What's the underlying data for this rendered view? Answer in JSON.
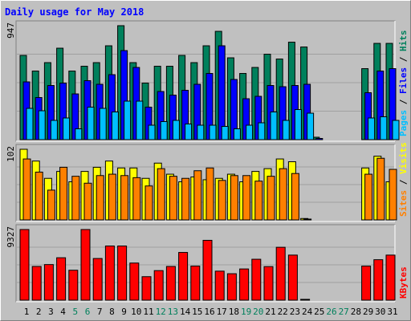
{
  "chart_data": [
    {
      "type": "bar",
      "title": "Daily usage for May 2018",
      "panel": "pages-files-hits",
      "y_max_label": "947",
      "ylim": [
        0,
        947
      ],
      "legend": [
        "Pages",
        "Files",
        "Hits"
      ],
      "legend_separator": "/",
      "categories": [
        "1",
        "2",
        "3",
        "4",
        "5",
        "6",
        "7",
        "8",
        "9",
        "10",
        "11",
        "12",
        "13",
        "14",
        "15",
        "16",
        "17",
        "18",
        "19",
        "20",
        "21",
        "22",
        "23",
        "24",
        "25",
        "26",
        "27",
        "28",
        "29",
        "30",
        "31"
      ],
      "series": [
        {
          "name": "Hits",
          "color": "#00805c",
          "values": [
            700,
            570,
            640,
            760,
            570,
            610,
            640,
            780,
            947,
            640,
            470,
            610,
            610,
            700,
            640,
            780,
            900,
            680,
            550,
            600,
            710,
            670,
            810,
            770,
            20,
            0,
            0,
            0,
            590,
            800,
            800
          ]
        },
        {
          "name": "Files",
          "color": "#0000ff",
          "values": [
            480,
            350,
            450,
            470,
            380,
            490,
            460,
            540,
            740,
            600,
            270,
            400,
            370,
            410,
            460,
            550,
            780,
            500,
            340,
            360,
            450,
            440,
            450,
            460,
            10,
            0,
            0,
            0,
            390,
            570,
            590
          ]
        },
        {
          "name": "Pages",
          "color": "#00bfff",
          "values": [
            260,
            240,
            160,
            180,
            90,
            270,
            260,
            230,
            320,
            320,
            120,
            150,
            160,
            130,
            120,
            120,
            110,
            90,
            120,
            140,
            230,
            160,
            250,
            220,
            0,
            0,
            0,
            0,
            180,
            190,
            160
          ]
        }
      ]
    },
    {
      "type": "bar",
      "panel": "sites-visits",
      "y_max_label": "102",
      "ylim": [
        0,
        102
      ],
      "legend": [
        "Sites",
        "Visits"
      ],
      "legend_separator": "/",
      "categories": [
        "1",
        "2",
        "3",
        "4",
        "5",
        "6",
        "7",
        "8",
        "9",
        "10",
        "11",
        "12",
        "13",
        "14",
        "15",
        "16",
        "17",
        "18",
        "19",
        "20",
        "21",
        "22",
        "23",
        "24",
        "25",
        "26",
        "27",
        "28",
        "29",
        "30",
        "31"
      ],
      "series": [
        {
          "name": "Visits",
          "color": "#ffff00",
          "values": [
            102,
            85,
            60,
            70,
            55,
            70,
            76,
            85,
            75,
            75,
            60,
            82,
            66,
            55,
            62,
            58,
            60,
            66,
            55,
            70,
            74,
            88,
            84,
            2,
            0,
            0,
            0,
            0,
            75,
            92,
            55
          ]
        },
        {
          "name": "Sites",
          "color": "#ff8000",
          "values": [
            88,
            69,
            43,
            76,
            63,
            53,
            64,
            66,
            64,
            61,
            49,
            74,
            63,
            60,
            71,
            75,
            57,
            64,
            64,
            56,
            63,
            74,
            67,
            1,
            0,
            0,
            0,
            0,
            66,
            89,
            73
          ]
        }
      ]
    },
    {
      "type": "bar",
      "panel": "kbytes",
      "y_max_label": "9327",
      "ylim": [
        0,
        9327
      ],
      "legend": [
        "KBytes"
      ],
      "categories": [
        "1",
        "2",
        "3",
        "4",
        "5",
        "6",
        "7",
        "8",
        "9",
        "10",
        "11",
        "12",
        "13",
        "14",
        "15",
        "16",
        "17",
        "18",
        "19",
        "20",
        "21",
        "22",
        "23",
        "24",
        "25",
        "26",
        "27",
        "28",
        "29",
        "30",
        "31"
      ],
      "series": [
        {
          "name": "KBytes",
          "color": "#ff0000",
          "values": [
            9327,
            4450,
            4700,
            5600,
            3950,
            9327,
            5500,
            7150,
            7150,
            4900,
            3100,
            3900,
            4450,
            6300,
            4500,
            7900,
            3830,
            3490,
            4120,
            5400,
            4430,
            6980,
            5950,
            80,
            0,
            0,
            0,
            0,
            4500,
            5340,
            5950
          ]
        }
      ]
    }
  ],
  "x_axis": {
    "weekend_days": [
      "5",
      "6",
      "12",
      "13",
      "19",
      "20",
      "26",
      "27"
    ]
  },
  "colors": {
    "background": "#c0c0c0",
    "title": "#0000ff",
    "weekday_label": "#000000",
    "weekend_label": "#00805c"
  }
}
